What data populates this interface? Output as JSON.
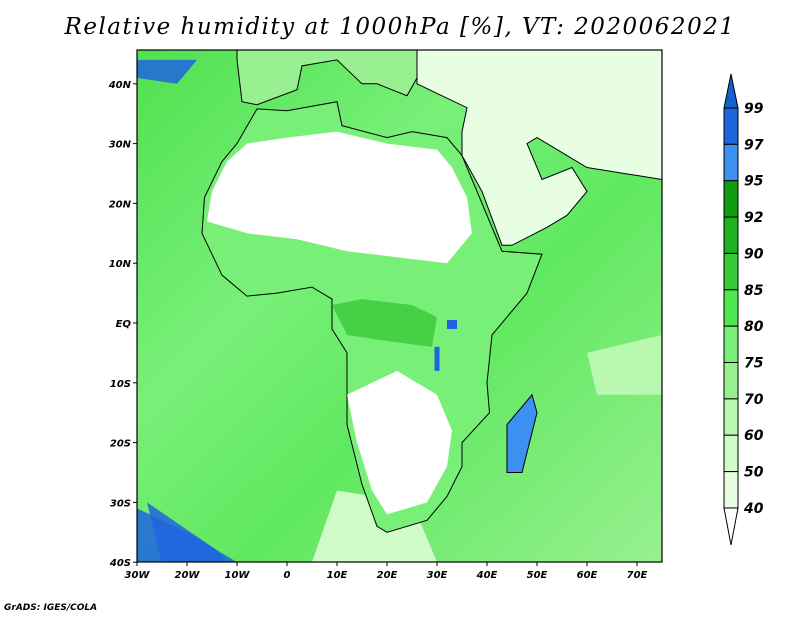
{
  "title": "Relative humidity at 1000hPa [%], VT: 2020062021",
  "footer": "GrADS: IGES/COLA",
  "map": {
    "variable": "Relative humidity",
    "level": "1000hPa",
    "units": "%",
    "valid_time": "2020062021",
    "lon_range": [
      -30,
      75
    ],
    "lat_range": [
      -40,
      45
    ],
    "x_ticks": [
      "30W",
      "20W",
      "10W",
      "0",
      "10E",
      "20E",
      "30E",
      "40E",
      "50E",
      "60E",
      "70E"
    ],
    "x_tick_values": [
      -30,
      -20,
      -10,
      0,
      10,
      20,
      30,
      40,
      50,
      60,
      70
    ],
    "y_ticks": [
      "40N",
      "30N",
      "20N",
      "10N",
      "EQ",
      "10S",
      "20S",
      "30S",
      "40S"
    ],
    "y_tick_values": [
      40,
      30,
      20,
      10,
      0,
      -10,
      -20,
      -30,
      -40
    ]
  },
  "colorbar": {
    "labels": [
      "99",
      "97",
      "95",
      "92",
      "90",
      "85",
      "80",
      "75",
      "70",
      "60",
      "50",
      "40"
    ],
    "colors": [
      "#2064e0",
      "#3c90f0",
      "#109c10",
      "#20b020",
      "#38c838",
      "#50e850",
      "#78f078",
      "#98f090",
      "#b8f8b0",
      "#d0fcc8",
      "#e8fee2"
    ],
    "top_arrow_color": "#1060d0",
    "bottom_arrow_color": "#ffffff"
  }
}
